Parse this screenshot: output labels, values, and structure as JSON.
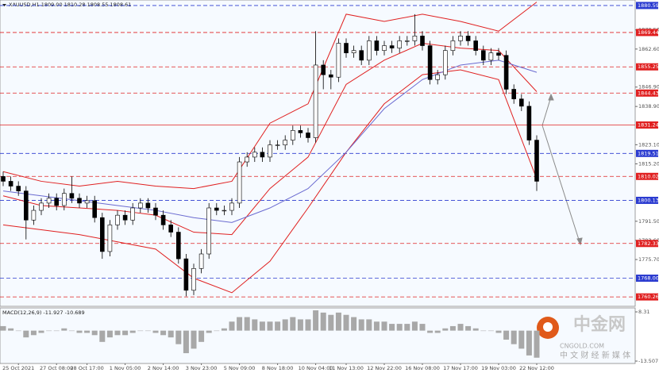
{
  "chart_data": [
    {
      "type": "candlestick",
      "title": "XAUUSD,H1  1809.00 1810.28 1808.55 1808.61",
      "categories": [
        null,
        null,
        "25 Oct 2021",
        null,
        null,
        null,
        null,
        "27 Oct 08:00",
        null,
        null,
        null,
        "28 Oct 17:00",
        null,
        null,
        null,
        null,
        "1 Nov 05:00",
        null,
        null,
        null,
        null,
        "2 Nov 14:00",
        null,
        null,
        null,
        null,
        "3 Nov 23:00",
        null,
        null,
        null,
        null,
        "5 Nov 09:00",
        null,
        null,
        null,
        null,
        "8 Nov 18:00",
        null,
        null,
        null,
        null,
        "10 Nov 04:00",
        null,
        null,
        null,
        "11 Nov 13:00",
        null,
        null,
        null,
        null,
        "12 Nov 22:00",
        null,
        null,
        null,
        null,
        "16 Nov 08:00",
        null,
        null,
        null,
        null,
        "17 Nov 17:00",
        null,
        null,
        null,
        null,
        "19 Nov 03:00",
        null,
        null,
        null,
        null,
        "22 Nov 12:00"
      ],
      "candles": {
        "open": [
          1810,
          1808,
          1806,
          1804,
          1792,
          1796,
          1799,
          1801,
          1798,
          1803,
          1801,
          1799,
          1800,
          1793,
          1779,
          1790,
          1794,
          1792,
          1797,
          1799,
          1797,
          1794,
          1790,
          1787,
          1776,
          1763,
          1772,
          1778,
          1797,
          1796,
          1796,
          1799,
          1816,
          1818,
          1820,
          1818,
          1823,
          1823,
          1825,
          1829,
          1828,
          1826,
          1856,
          1852,
          1851,
          1865,
          1861,
          1862,
          1858,
          1866,
          1862,
          1864,
          1863,
          1866,
          1866,
          1868,
          1864,
          1850,
          1852,
          1862,
          1866,
          1868,
          1866,
          1862,
          1858,
          1861,
          1860,
          1846,
          1842,
          1839,
          1825
        ],
        "high": [
          1812,
          1810,
          1808,
          1806,
          1798,
          1801,
          1803,
          1803,
          1805,
          1810,
          1803,
          1802,
          1802,
          1795,
          1792,
          1796,
          1796,
          1799,
          1801,
          1801,
          1799,
          1796,
          1792,
          1789,
          1778,
          1774,
          1780,
          1799,
          1799,
          1798,
          1801,
          1818,
          1820,
          1822,
          1822,
          1825,
          1825,
          1827,
          1831,
          1831,
          1830,
          1870,
          1858,
          1854,
          1867,
          1867,
          1864,
          1864,
          1868,
          1868,
          1866,
          1866,
          1868,
          1868,
          1877,
          1870,
          1866,
          1854,
          1864,
          1868,
          1870,
          1870,
          1868,
          1864,
          1863,
          1863,
          1862,
          1848,
          1844,
          1841,
          1827
        ],
        "low": [
          1806,
          1804,
          1802,
          1784,
          1790,
          1794,
          1797,
          1796,
          1796,
          1799,
          1797,
          1797,
          1791,
          1776,
          1777,
          1788,
          1790,
          1790,
          1795,
          1795,
          1792,
          1788,
          1785,
          1774,
          1760.5,
          1761,
          1770,
          1776,
          1794,
          1794,
          1794,
          1797,
          1814,
          1816,
          1816,
          1816,
          1821,
          1821,
          1823,
          1826,
          1824,
          1824,
          1846,
          1846,
          1849,
          1859,
          1859,
          1856,
          1856,
          1860,
          1860,
          1861,
          1861,
          1864,
          1864,
          1862,
          1848,
          1848,
          1850,
          1860,
          1864,
          1864,
          1860,
          1856,
          1856,
          1858,
          1844,
          1840,
          1837,
          1823,
          1804
        ],
        "close": [
          1808,
          1806,
          1804,
          1792,
          1796,
          1799,
          1801,
          1798,
          1803,
          1801,
          1799,
          1800,
          1793,
          1779,
          1790,
          1794,
          1792,
          1797,
          1799,
          1797,
          1794,
          1790,
          1787,
          1776,
          1763,
          1772,
          1778,
          1797,
          1796,
          1796,
          1799,
          1816,
          1818,
          1820,
          1818,
          1823,
          1823,
          1825,
          1829,
          1828,
          1826,
          1856,
          1852,
          1851,
          1865,
          1861,
          1862,
          1858,
          1866,
          1862,
          1864,
          1863,
          1866,
          1866,
          1868,
          1864,
          1850,
          1852,
          1862,
          1866,
          1868,
          1866,
          1862,
          1858,
          1861,
          1860,
          1846,
          1842,
          1839,
          1825,
          1808
        ]
      },
      "up_color": "#ffffff",
      "down_color": "#000000",
      "lines": [
        {
          "color": "#e02020",
          "x": [
            0,
            5,
            10,
            15,
            20,
            25,
            30,
            35,
            40,
            45,
            50,
            55,
            60,
            65,
            70
          ],
          "values": [
            1812,
            1808,
            1806,
            1808,
            1806,
            1805,
            1808,
            1832,
            1840,
            1877,
            1874,
            1877,
            1874,
            1870,
            1882
          ]
        },
        {
          "color": "#e02020",
          "x": [
            0,
            5,
            10,
            15,
            20,
            25,
            30,
            35,
            40,
            45,
            50,
            55,
            60,
            65,
            70
          ],
          "values": [
            1802,
            1798,
            1797,
            1796,
            1794,
            1787,
            1786,
            1805,
            1818,
            1848,
            1858,
            1865,
            1863,
            1862,
            1845
          ]
        },
        {
          "color": "#e02020",
          "x": [
            0,
            5,
            10,
            15,
            20,
            25,
            30,
            35,
            40,
            45,
            50,
            55,
            60,
            65,
            70
          ],
          "values": [
            1790,
            1788,
            1786,
            1783,
            1780,
            1768,
            1762,
            1775,
            1797,
            1820,
            1840,
            1852,
            1854,
            1850,
            1809
          ]
        },
        {
          "color": "#6a6ad0",
          "x": [
            0,
            5,
            10,
            15,
            20,
            25,
            30,
            35,
            40,
            45,
            50,
            55,
            60,
            65,
            70
          ],
          "values": [
            1804,
            1802,
            1800,
            1798,
            1796,
            1793,
            1791,
            1797,
            1805,
            1820,
            1838,
            1850,
            1856,
            1858,
            1853
          ]
        }
      ],
      "levels": [
        {
          "value": 1880.59,
          "color": "#2b3bd0",
          "style": "dashed"
        },
        {
          "value": 1869.44,
          "color": "#e02020",
          "style": "dashed"
        },
        {
          "value": 1855.25,
          "color": "#e02020",
          "style": "dashed"
        },
        {
          "value": 1844.43,
          "color": "#e02020",
          "style": "dashed"
        },
        {
          "value": 1831.24,
          "color": "#e02020",
          "style": "solid"
        },
        {
          "value": 1819.51,
          "color": "#2b3bd0",
          "style": "dashed"
        },
        {
          "value": 1810.02,
          "color": "#e02020",
          "style": "dashed"
        },
        {
          "value": 1800.13,
          "color": "#2b3bd0",
          "style": "dashed"
        },
        {
          "value": 1782.33,
          "color": "#e02020",
          "style": "dashed"
        },
        {
          "value": 1768,
          "label": "1768.00",
          "color": "#2b3bd0",
          "style": "dashed"
        },
        {
          "value": 1760.26,
          "color": "#e02020",
          "style": "dashed"
        }
      ],
      "ylim": [
        1756.7,
        1882.2
      ],
      "yticks": [
        {
          "value": 1870.5,
          "label": "1870.50"
        },
        {
          "value": 1862.6,
          "label": "1862.60"
        },
        {
          "value": 1846.9,
          "label": "1846.90"
        },
        {
          "value": 1838.9,
          "label": "1838.90"
        },
        {
          "value": 1823.1,
          "label": "1823.10"
        },
        {
          "value": 1815.2,
          "label": "1815.20"
        },
        {
          "value": 1791.5,
          "label": "1791.50"
        },
        {
          "value": 1783.6,
          "label": "1783.60"
        },
        {
          "value": 1775.7,
          "label": "1775.70"
        }
      ]
    },
    {
      "type": "bar",
      "title": "MACD(12,26,9) -11.927 -10.689",
      "color": "#a8a8a8",
      "values": [
        2,
        1,
        0,
        -3,
        -2,
        -1,
        0,
        0,
        1,
        0,
        -1,
        -1,
        -2,
        -5,
        -3,
        -2,
        -2,
        -1,
        0,
        0,
        -1,
        -2,
        -3,
        -6,
        -10,
        -8,
        -5,
        -1,
        0,
        1,
        4,
        6,
        6,
        5,
        4,
        4,
        4,
        5,
        6,
        5,
        5,
        9,
        8,
        7,
        8,
        7,
        6,
        5,
        5,
        4,
        4,
        3,
        3,
        3,
        4,
        3,
        -1,
        -1,
        1,
        2,
        3,
        2,
        1,
        0,
        0,
        -1,
        -4,
        -6,
        -8,
        -11,
        -12
      ],
      "ylim": [
        -13.507,
        8.31
      ],
      "yticks": [
        8.31,
        -13.507
      ]
    }
  ],
  "watermark": {
    "brand": "中金网",
    "site": "CNGOLD.COM",
    "tagline": "中 文 财 经 新 媒 体"
  }
}
